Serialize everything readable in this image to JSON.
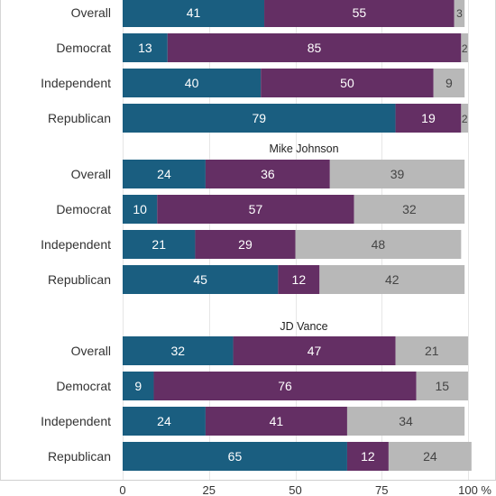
{
  "chart_data": {
    "type": "bar",
    "stacked": true,
    "orientation": "horizontal",
    "xlim": [
      0,
      100
    ],
    "x_ticks": [
      {
        "value": 0,
        "label": "0"
      },
      {
        "value": 25,
        "label": "25"
      },
      {
        "value": 50,
        "label": "50"
      },
      {
        "value": 75,
        "label": "75"
      },
      {
        "value": 100,
        "label": "100 %"
      }
    ],
    "grid": true,
    "segment_colors": [
      "#1a5e80",
      "#642f64",
      "#b8b8b8"
    ],
    "panels": [
      {
        "title": "",
        "categories": [
          "Overall",
          "Democrat",
          "Independent",
          "Republican"
        ],
        "rows": [
          [
            41,
            55,
            3
          ],
          [
            13,
            85,
            2
          ],
          [
            40,
            50,
            9
          ],
          [
            79,
            19,
            2
          ]
        ],
        "labels": [
          [
            "41",
            "55",
            "3"
          ],
          [
            "13",
            "85",
            "2"
          ],
          [
            "40",
            "50",
            "9"
          ],
          [
            "79",
            "19",
            "2"
          ]
        ]
      },
      {
        "title": "Mike Johnson",
        "categories": [
          "Overall",
          "Democrat",
          "Independent",
          "Republican"
        ],
        "rows": [
          [
            24,
            36,
            39
          ],
          [
            10,
            57,
            32
          ],
          [
            21,
            29,
            48
          ],
          [
            45,
            12,
            42
          ]
        ],
        "labels": [
          [
            "24",
            "36",
            "39"
          ],
          [
            "10",
            "57",
            "32"
          ],
          [
            "21",
            "29",
            "48"
          ],
          [
            "45",
            "12",
            "42"
          ]
        ]
      },
      {
        "title": "JD Vance",
        "categories": [
          "Overall",
          "Democrat",
          "Independent",
          "Republican"
        ],
        "rows": [
          [
            32,
            47,
            21
          ],
          [
            9,
            76,
            15
          ],
          [
            24,
            41,
            34
          ],
          [
            65,
            12,
            24
          ]
        ],
        "labels": [
          [
            "32",
            "47",
            "21"
          ],
          [
            "9",
            "76",
            "15"
          ],
          [
            "24",
            "41",
            "34"
          ],
          [
            "65",
            "12",
            "24"
          ]
        ]
      }
    ]
  }
}
